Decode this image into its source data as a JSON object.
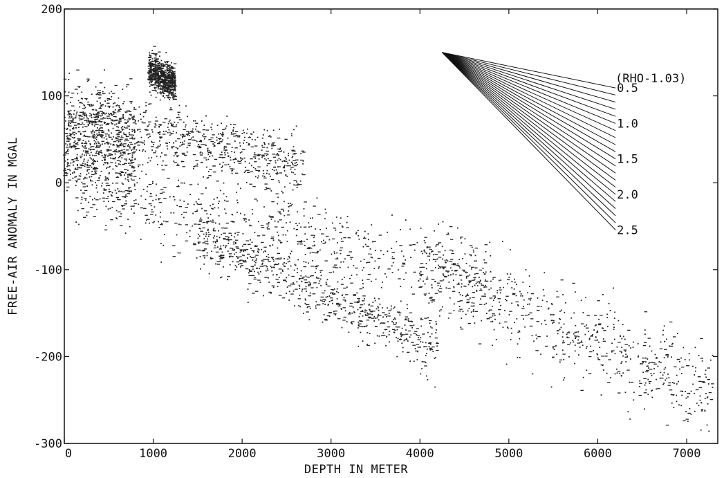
{
  "chart_data": {
    "type": "scatter",
    "title": "",
    "xlabel": "DEPTH IN METER",
    "ylabel": "FREE-AIR ANOMALY IN MGAL",
    "xlim": [
      0,
      7350
    ],
    "ylim": [
      -300,
      200
    ],
    "x_ticks": [
      0,
      1000,
      2000,
      3000,
      4000,
      5000,
      6000,
      7000
    ],
    "y_ticks": [
      -300,
      -200,
      -100,
      0,
      100,
      200
    ],
    "x_tick_labels": [
      "0",
      "1000",
      "2000",
      "3000",
      "4000",
      "5000",
      "6000",
      "7000"
    ],
    "y_tick_labels": [
      "-300",
      "-200",
      "-100",
      "0",
      "100",
      "200"
    ],
    "grid": false,
    "marker": "dot",
    "scatter_clusters": [
      {
        "name": "",
        "x_range": [
          0,
          800
        ],
        "y_center_at_start": 60,
        "slope_mgal_per_m": -0.03,
        "spread_mgal": 45
      },
      {
        "name": "",
        "x_range": [
          300,
          2700
        ],
        "y_center_at_start": 75,
        "slope_mgal_per_m": -0.024,
        "spread_mgal": 25
      },
      {
        "name": "",
        "x_range": [
          950,
          1250
        ],
        "y_center_at_start": 130,
        "slope_mgal_per_m": -0.05,
        "spread_mgal": 15
      },
      {
        "name": "",
        "x_range": [
          0,
          4800
        ],
        "y_center_at_start": 5,
        "slope_mgal_per_m": -0.025,
        "spread_mgal": 35
      },
      {
        "name": "",
        "x_range": [
          1500,
          4200
        ],
        "y_center_at_start": -60,
        "slope_mgal_per_m": -0.048,
        "spread_mgal": 22
      },
      {
        "name": "",
        "x_range": [
          4000,
          7300
        ],
        "y_center_at_start": -100,
        "slope_mgal_per_m": -0.043,
        "spread_mgal": 38
      }
    ],
    "scatter_point_count": 4200,
    "density_lines": {
      "header": "(RHO-1.03)",
      "origin": {
        "x": 4250,
        "y": 150
      },
      "end_x": 6200,
      "rho_values": [
        0.5,
        0.6,
        0.7,
        0.8,
        0.9,
        1.0,
        1.1,
        1.2,
        1.3,
        1.4,
        1.5,
        1.6,
        1.7,
        1.8,
        1.9,
        2.0,
        2.1,
        2.2,
        2.3,
        2.4,
        2.5
      ],
      "labels": [
        {
          "rho": 0.5,
          "text": "0.5"
        },
        {
          "rho": 1.0,
          "text": "1.0"
        },
        {
          "rho": 1.5,
          "text": "1.5"
        },
        {
          "rho": 2.0,
          "text": "2.0"
        },
        {
          "rho": 2.5,
          "text": "2.5"
        }
      ]
    }
  }
}
